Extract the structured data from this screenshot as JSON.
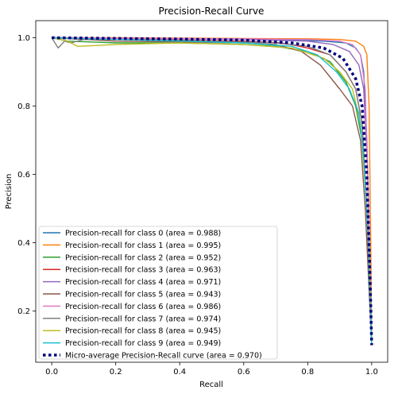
{
  "chart_data": {
    "type": "line",
    "title": "Precision-Recall Curve",
    "xlabel": "Recall",
    "ylabel": "Precision",
    "xlim": [
      -0.05,
      1.05
    ],
    "ylim": [
      0.05,
      1.05
    ],
    "xticks": [
      "0.0",
      "0.2",
      "0.4",
      "0.6",
      "0.8",
      "1.0"
    ],
    "yticks": [
      "0.2",
      "0.4",
      "0.6",
      "0.8",
      "1.0"
    ],
    "grid": false,
    "legend_position": "lower-left",
    "series": [
      {
        "name": "Precision-recall for class 0 (area = 0.988)",
        "color": "#1f77b4",
        "style": "solid",
        "x": [
          0,
          0.1,
          0.3,
          0.5,
          0.7,
          0.85,
          0.92,
          0.95,
          0.965,
          0.975,
          0.985,
          0.995,
          1.0
        ],
        "y": [
          1.0,
          0.999,
          0.998,
          0.997,
          0.995,
          0.99,
          0.985,
          0.97,
          0.95,
          0.9,
          0.7,
          0.3,
          0.1
        ]
      },
      {
        "name": "Precision-recall for class 1 (area = 0.995)",
        "color": "#ff7f0e",
        "style": "solid",
        "x": [
          0,
          0.2,
          0.4,
          0.6,
          0.8,
          0.9,
          0.95,
          0.975,
          0.985,
          0.992,
          0.997,
          1.0
        ],
        "y": [
          1.0,
          1.0,
          0.999,
          0.998,
          0.997,
          0.995,
          0.99,
          0.975,
          0.95,
          0.8,
          0.4,
          0.1
        ]
      },
      {
        "name": "Precision-recall for class 2 (area = 0.952)",
        "color": "#2ca02c",
        "style": "solid",
        "x": [
          0,
          0.05,
          0.2,
          0.4,
          0.6,
          0.7,
          0.8,
          0.87,
          0.92,
          0.95,
          0.97,
          0.985,
          1.0
        ],
        "y": [
          1.0,
          0.99,
          0.985,
          0.985,
          0.98,
          0.975,
          0.96,
          0.93,
          0.87,
          0.8,
          0.7,
          0.5,
          0.1
        ]
      },
      {
        "name": "Precision-recall for class 3 (area = 0.963)",
        "color": "#d62728",
        "style": "solid",
        "x": [
          0,
          0.2,
          0.4,
          0.6,
          0.72,
          0.8,
          0.87,
          0.92,
          0.95,
          0.97,
          0.985,
          1.0
        ],
        "y": [
          1.0,
          0.995,
          0.993,
          0.99,
          0.985,
          0.97,
          0.95,
          0.9,
          0.85,
          0.75,
          0.5,
          0.1
        ]
      },
      {
        "name": "Precision-recall for class 4 (area = 0.971)",
        "color": "#9467bd",
        "style": "solid",
        "x": [
          0,
          0.2,
          0.4,
          0.6,
          0.8,
          0.88,
          0.93,
          0.96,
          0.975,
          0.988,
          1.0
        ],
        "y": [
          1.0,
          0.998,
          0.997,
          0.995,
          0.99,
          0.98,
          0.96,
          0.92,
          0.85,
          0.6,
          0.1
        ]
      },
      {
        "name": "Precision-recall for class 5 (area = 0.943)",
        "color": "#8c564b",
        "style": "solid",
        "x": [
          0,
          0.2,
          0.4,
          0.6,
          0.7,
          0.78,
          0.84,
          0.9,
          0.94,
          0.965,
          0.98,
          1.0
        ],
        "y": [
          1.0,
          0.99,
          0.988,
          0.985,
          0.98,
          0.96,
          0.92,
          0.85,
          0.8,
          0.7,
          0.5,
          0.1
        ]
      },
      {
        "name": "Precision-recall for class 6 (area = 0.986)",
        "color": "#e377c2",
        "style": "solid",
        "x": [
          0,
          0.2,
          0.4,
          0.6,
          0.8,
          0.9,
          0.94,
          0.965,
          0.98,
          0.99,
          1.0
        ],
        "y": [
          1.0,
          0.999,
          0.998,
          0.997,
          0.995,
          0.99,
          0.98,
          0.95,
          0.85,
          0.5,
          0.1
        ]
      },
      {
        "name": "Precision-recall for class 7 (area = 0.974)",
        "color": "#7f7f7f",
        "style": "solid",
        "x": [
          0,
          0.02,
          0.04,
          0.06,
          0.1,
          0.3,
          0.5,
          0.7,
          0.8,
          0.87,
          0.92,
          0.95,
          0.97,
          0.99,
          1.0
        ],
        "y": [
          1.0,
          0.97,
          0.99,
          0.985,
          0.995,
          0.995,
          0.99,
          0.985,
          0.975,
          0.95,
          0.9,
          0.85,
          0.75,
          0.4,
          0.1
        ]
      },
      {
        "name": "Precision-recall for class 8 (area = 0.945)",
        "color": "#bcbd22",
        "style": "solid",
        "x": [
          0,
          0.05,
          0.08,
          0.2,
          0.4,
          0.6,
          0.75,
          0.85,
          0.9,
          0.94,
          0.965,
          0.985,
          1.0
        ],
        "y": [
          1.0,
          0.99,
          0.975,
          0.98,
          0.985,
          0.98,
          0.97,
          0.94,
          0.9,
          0.85,
          0.75,
          0.5,
          0.1
        ]
      },
      {
        "name": "Precision-recall for class 9 (area = 0.949)",
        "color": "#17becf",
        "style": "solid",
        "x": [
          0,
          0.2,
          0.4,
          0.6,
          0.75,
          0.83,
          0.89,
          0.93,
          0.96,
          0.975,
          0.99,
          1.0
        ],
        "y": [
          1.0,
          0.995,
          0.99,
          0.985,
          0.975,
          0.95,
          0.9,
          0.85,
          0.78,
          0.65,
          0.4,
          0.1
        ]
      },
      {
        "name": "Micro-average Precision-Recall curve (area = 0.970)",
        "color": "#000080",
        "style": "dotted",
        "x": [
          0,
          0.2,
          0.4,
          0.6,
          0.75,
          0.85,
          0.91,
          0.95,
          0.97,
          0.985,
          0.995,
          1.0
        ],
        "y": [
          1.0,
          0.998,
          0.996,
          0.993,
          0.985,
          0.97,
          0.94,
          0.88,
          0.8,
          0.6,
          0.3,
          0.1
        ]
      }
    ]
  }
}
